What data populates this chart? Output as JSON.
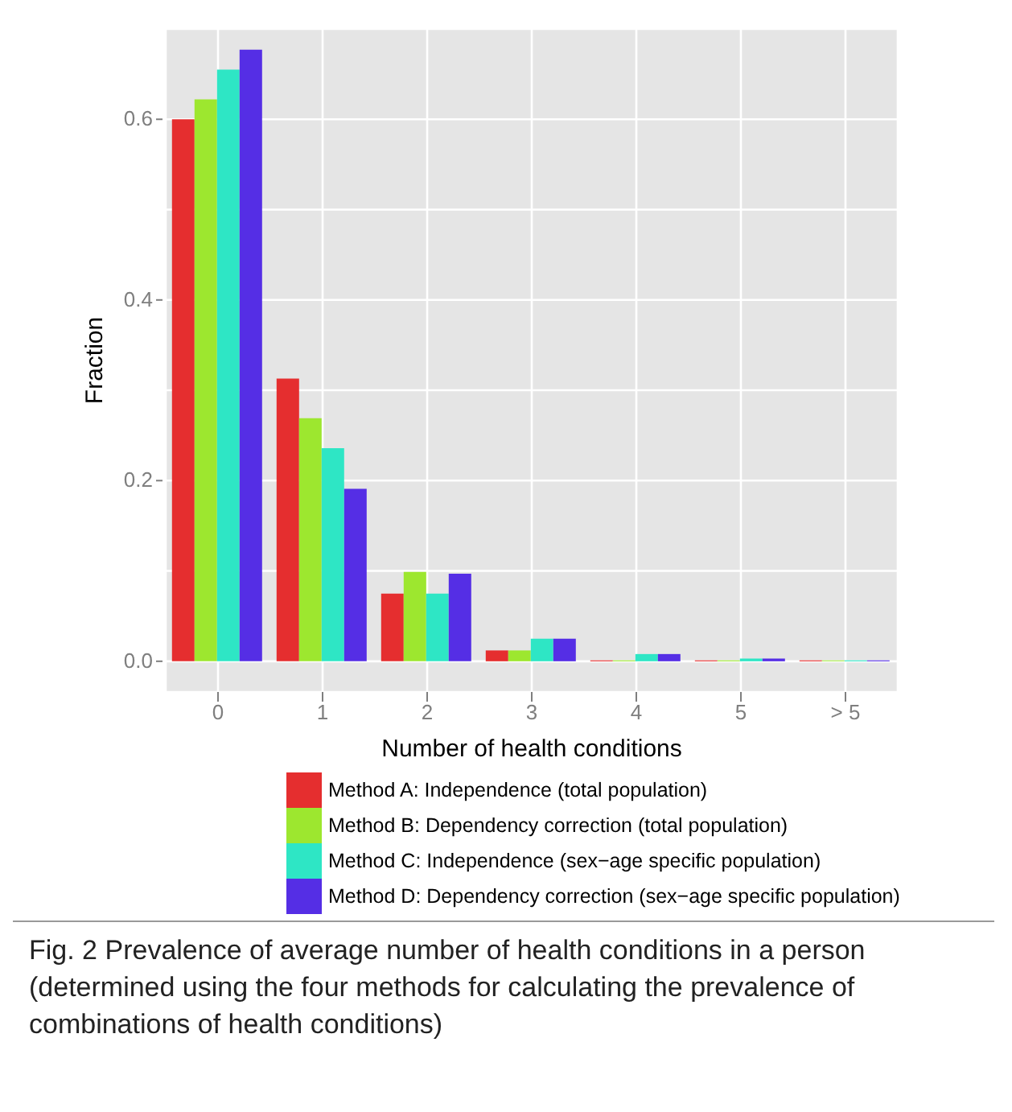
{
  "chart_data": {
    "type": "bar",
    "xlabel": "Number of health conditions",
    "ylabel": "Fraction",
    "categories": [
      "0",
      "1",
      "2",
      "3",
      "4",
      "5",
      "> 5"
    ],
    "series": [
      {
        "name": "Method A: Independence (total population)",
        "color": "#e52e2f",
        "values": [
          0.6,
          0.313,
          0.075,
          0.012,
          0.001,
          0.001,
          0.001
        ]
      },
      {
        "name": "Method B: Dependency correction (total population)",
        "color": "#9de72f",
        "values": [
          0.622,
          0.269,
          0.099,
          0.012,
          0.001,
          0.001,
          0.001
        ]
      },
      {
        "name": "Method C: Independence (sex−age specific population)",
        "color": "#2ee6c5",
        "values": [
          0.655,
          0.236,
          0.075,
          0.025,
          0.008,
          0.003,
          0.001
        ]
      },
      {
        "name": "Method D: Dependency correction (sex−age specific population)",
        "color": "#552ee5",
        "values": [
          0.677,
          0.191,
          0.097,
          0.025,
          0.008,
          0.003,
          0.001
        ]
      }
    ],
    "ylim": [
      -0.034,
      0.7
    ],
    "yticks": [
      {
        "value": 0,
        "label": "0.0"
      },
      {
        "value": 0.1,
        "label": null
      },
      {
        "value": 0.2,
        "label": "0.2"
      },
      {
        "value": 0.3,
        "label": null
      },
      {
        "value": 0.4,
        "label": "0.4"
      },
      {
        "value": 0.5,
        "label": null
      },
      {
        "value": 0.6,
        "label": "0.6"
      }
    ],
    "grid": true,
    "legend": "bottom",
    "annotations": [
      "Fig. 2 Prevalence of average number of health conditions in a person (determined using the four methods for calculating the prevalence of combinations of health conditions)"
    ]
  }
}
